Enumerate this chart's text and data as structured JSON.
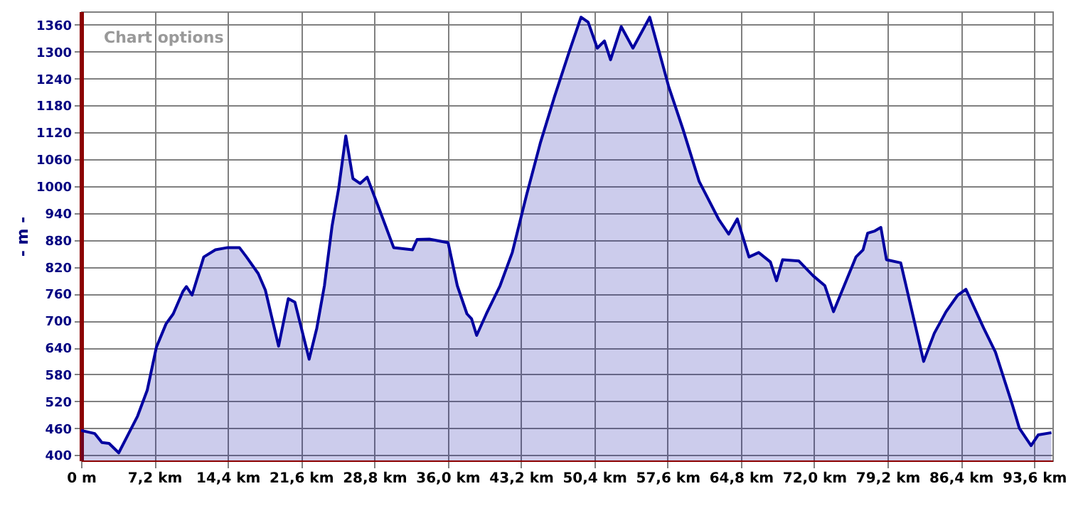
{
  "chart_data": {
    "type": "area",
    "ylabel": "- m -",
    "annotations": [
      "Chart options"
    ],
    "xlim": [
      0,
      95.4
    ],
    "ylim": [
      388,
      1390
    ],
    "xticks": [
      {
        "value": 0,
        "label": "0 m"
      },
      {
        "value": 7.2,
        "label": "7,2 km"
      },
      {
        "value": 14.4,
        "label": "14,4 km"
      },
      {
        "value": 21.6,
        "label": "21,6 km"
      },
      {
        "value": 28.8,
        "label": "28,8 km"
      },
      {
        "value": 36,
        "label": "36,0 km"
      },
      {
        "value": 43.2,
        "label": "43,2 km"
      },
      {
        "value": 50.4,
        "label": "50,4 km"
      },
      {
        "value": 57.6,
        "label": "57,6 km"
      },
      {
        "value": 64.8,
        "label": "64,8 km"
      },
      {
        "value": 72,
        "label": "72,0 km"
      },
      {
        "value": 79.2,
        "label": "79,2 km"
      },
      {
        "value": 86.4,
        "label": "86,4 km"
      },
      {
        "value": 93.6,
        "label": "93,6 km"
      }
    ],
    "yticks": [
      400,
      460,
      520,
      580,
      640,
      700,
      760,
      820,
      880,
      940,
      1000,
      1060,
      1120,
      1180,
      1240,
      1300,
      1360
    ],
    "grid": true,
    "marker": "none",
    "line_style": "solid",
    "series": [
      {
        "color": "#0000a0",
        "x": [
          0,
          1.35,
          2.05,
          2.75,
          3.7,
          4.6,
          5.55,
          6.5,
          7.4,
          8.35,
          9.05,
          10.0,
          10.35,
          10.9,
          12.05,
          13.2,
          14.4,
          15.55,
          16.25,
          17.4,
          18.1,
          19.4,
          20.35,
          21.0,
          22.4,
          23.15,
          23.9,
          24.65,
          25.3,
          26.0,
          26.7,
          27.4,
          28.1,
          29.3,
          30.7,
          32.55,
          33.0,
          34.2,
          36.05,
          36.95,
          37.9,
          38.35,
          38.85,
          39.8,
          41.15,
          42.35,
          43.75,
          45.1,
          46.5,
          47.9,
          49.1,
          49.8,
          50.7,
          51.4,
          52.0,
          53.05,
          54.2,
          55.85,
          57.7,
          59.1,
          60.7,
          61.4,
          62.6,
          63.6,
          64.45,
          65.6,
          66.55,
          67.7,
          68.3,
          68.9,
          70.5,
          71.9,
          73.05,
          73.9,
          76.1,
          76.8,
          77.25,
          77.95,
          78.55,
          79.1,
          80.5,
          82.75,
          83.8,
          84.95,
          86.1,
          86.9,
          88.65,
          89.8,
          91.45,
          92.15,
          93.3,
          94.0,
          95.3
        ],
        "values": [
          455,
          448,
          428,
          426,
          405,
          445,
          487,
          545,
          641,
          693,
          715,
          765,
          776,
          757,
          842,
          858,
          863,
          863,
          842,
          805,
          768,
          643,
          749,
          741,
          614,
          683,
          778,
          911,
          995,
          1112,
          1017,
          1006,
          1020,
          948,
          863,
          858,
          881,
          882,
          874,
          778,
          715,
          704,
          667,
          715,
          778,
          852,
          980,
          1096,
          1200,
          1297,
          1377,
          1366,
          1308,
          1324,
          1282,
          1356,
          1308,
          1377,
          1223,
          1128,
          1011,
          980,
          927,
          893,
          927,
          842,
          852,
          831,
          789,
          836,
          833,
          800,
          778,
          720,
          842,
          858,
          895,
          900,
          908,
          836,
          829,
          609,
          672,
          720,
          757,
          770,
          683,
          630,
          513,
          460,
          421,
          445,
          450
        ]
      }
    ]
  }
}
